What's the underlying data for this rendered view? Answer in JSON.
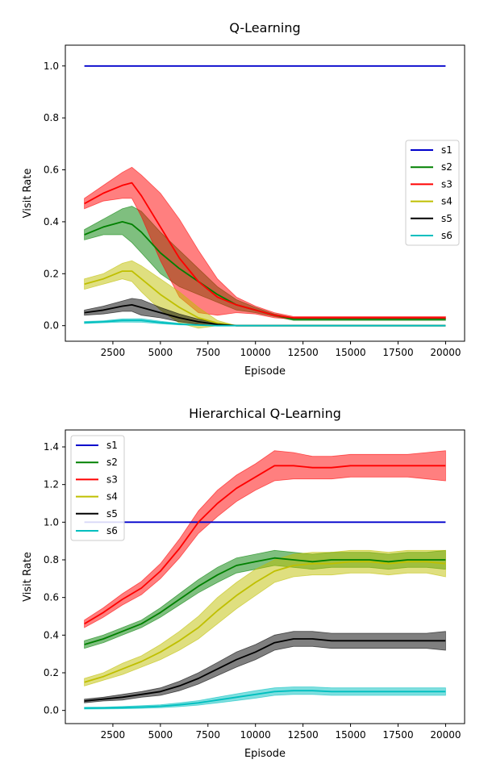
{
  "chart_data": [
    {
      "type": "line",
      "title": "Q-Learning",
      "xlabel": "Episode",
      "ylabel": "Visit Rate",
      "xlim": [
        0,
        21000
      ],
      "ylim": [
        -0.06,
        1.08
      ],
      "xticks": [
        2500,
        5000,
        7500,
        10000,
        12500,
        15000,
        17500,
        20000
      ],
      "yticks": [
        0.0,
        0.2,
        0.4,
        0.6,
        0.8,
        1.0
      ],
      "legend": "center-right",
      "series": [
        {
          "name": "s1",
          "color": "#0000cc",
          "x": [
            1000,
            20000
          ],
          "y": [
            1.0,
            1.0
          ],
          "band": 0
        },
        {
          "name": "s2",
          "color": "#008000",
          "x": [
            1000,
            2000,
            3000,
            3500,
            4000,
            5000,
            6000,
            7000,
            8000,
            9000,
            10000,
            11000,
            12000,
            14000,
            20000
          ],
          "y": [
            0.35,
            0.38,
            0.4,
            0.39,
            0.36,
            0.28,
            0.22,
            0.17,
            0.12,
            0.08,
            0.06,
            0.04,
            0.025,
            0.025,
            0.025
          ],
          "band": [
            0.02,
            0.03,
            0.05,
            0.07,
            0.08,
            0.08,
            0.07,
            0.05,
            0.03,
            0.02,
            0.01,
            0.005,
            0.005,
            0.005,
            0.005
          ]
        },
        {
          "name": "s3",
          "color": "#ff0000",
          "x": [
            1000,
            2000,
            3000,
            3500,
            4000,
            5000,
            6000,
            7000,
            8000,
            9000,
            10000,
            11000,
            12000,
            14000,
            20000
          ],
          "y": [
            0.47,
            0.51,
            0.54,
            0.55,
            0.5,
            0.38,
            0.26,
            0.17,
            0.11,
            0.08,
            0.06,
            0.04,
            0.03,
            0.03,
            0.03
          ],
          "band": [
            0.02,
            0.03,
            0.05,
            0.06,
            0.08,
            0.13,
            0.15,
            0.12,
            0.07,
            0.03,
            0.015,
            0.01,
            0.005,
            0.005,
            0.005
          ]
        },
        {
          "name": "s4",
          "color": "#bfbf00",
          "x": [
            1000,
            2000,
            3000,
            3500,
            4000,
            5000,
            6000,
            7000,
            8000,
            9000,
            20000
          ],
          "y": [
            0.16,
            0.18,
            0.21,
            0.21,
            0.18,
            0.12,
            0.07,
            0.03,
            0.01,
            0.0,
            0.0
          ],
          "band": [
            0.02,
            0.02,
            0.03,
            0.04,
            0.05,
            0.06,
            0.06,
            0.04,
            0.01,
            0.0,
            0.0
          ]
        },
        {
          "name": "s5",
          "color": "#000000",
          "x": [
            1000,
            2000,
            3000,
            3500,
            4000,
            5000,
            6000,
            7000,
            8000,
            9000,
            20000
          ],
          "y": [
            0.05,
            0.06,
            0.075,
            0.08,
            0.07,
            0.05,
            0.03,
            0.015,
            0.005,
            0.0,
            0.0
          ],
          "band": [
            0.01,
            0.015,
            0.02,
            0.025,
            0.03,
            0.02,
            0.015,
            0.01,
            0.005,
            0.0,
            0.0
          ]
        },
        {
          "name": "s6",
          "color": "#00bfbf",
          "x": [
            1000,
            2000,
            3000,
            4000,
            5000,
            6000,
            7000,
            8000,
            20000
          ],
          "y": [
            0.012,
            0.015,
            0.02,
            0.02,
            0.012,
            0.006,
            0.002,
            0.0,
            0.0
          ],
          "band": [
            0.004,
            0.004,
            0.006,
            0.007,
            0.005,
            0.003,
            0.001,
            0.0,
            0.0
          ]
        }
      ]
    },
    {
      "type": "line",
      "title": "Hierarchical Q-Learning",
      "xlabel": "Episode",
      "ylabel": "Visit Rate",
      "xlim": [
        0,
        21000
      ],
      "ylim": [
        -0.07,
        1.49
      ],
      "xticks": [
        2500,
        5000,
        7500,
        10000,
        12500,
        15000,
        17500,
        20000
      ],
      "yticks": [
        0.0,
        0.2,
        0.4,
        0.6,
        0.8,
        1.0,
        1.2,
        1.4
      ],
      "legend": "top-left",
      "series": [
        {
          "name": "s1",
          "color": "#0000cc",
          "x": [
            1000,
            20000
          ],
          "y": [
            1.0,
            1.0
          ],
          "band": 0
        },
        {
          "name": "s2",
          "color": "#008000",
          "x": [
            1000,
            2000,
            3000,
            4000,
            5000,
            6000,
            7000,
            8000,
            9000,
            10000,
            11000,
            12000,
            13000,
            14000,
            15000,
            16000,
            17000,
            18000,
            19000,
            20000
          ],
          "y": [
            0.35,
            0.38,
            0.42,
            0.46,
            0.52,
            0.59,
            0.66,
            0.72,
            0.77,
            0.79,
            0.81,
            0.8,
            0.79,
            0.8,
            0.8,
            0.8,
            0.79,
            0.8,
            0.8,
            0.8
          ],
          "band": [
            0.02,
            0.02,
            0.02,
            0.02,
            0.025,
            0.03,
            0.035,
            0.04,
            0.04,
            0.04,
            0.04,
            0.04,
            0.04,
            0.04,
            0.04,
            0.04,
            0.04,
            0.04,
            0.04,
            0.05
          ]
        },
        {
          "name": "s3",
          "color": "#ff0000",
          "x": [
            1000,
            2000,
            3000,
            4000,
            5000,
            6000,
            7000,
            8000,
            9000,
            10000,
            11000,
            12000,
            13000,
            14000,
            15000,
            16000,
            17000,
            18000,
            19000,
            20000
          ],
          "y": [
            0.46,
            0.52,
            0.59,
            0.65,
            0.74,
            0.86,
            1.0,
            1.1,
            1.18,
            1.24,
            1.3,
            1.3,
            1.29,
            1.29,
            1.3,
            1.3,
            1.3,
            1.3,
            1.3,
            1.3
          ],
          "band": [
            0.02,
            0.025,
            0.03,
            0.035,
            0.04,
            0.05,
            0.06,
            0.07,
            0.07,
            0.07,
            0.08,
            0.07,
            0.06,
            0.06,
            0.06,
            0.06,
            0.06,
            0.06,
            0.07,
            0.08
          ]
        },
        {
          "name": "s4",
          "color": "#bfbf00",
          "x": [
            1000,
            2000,
            3000,
            4000,
            5000,
            6000,
            7000,
            8000,
            9000,
            10000,
            11000,
            12000,
            13000,
            14000,
            15000,
            16000,
            17000,
            18000,
            19000,
            20000
          ],
          "y": [
            0.15,
            0.18,
            0.22,
            0.26,
            0.31,
            0.37,
            0.44,
            0.53,
            0.61,
            0.68,
            0.74,
            0.77,
            0.78,
            0.78,
            0.79,
            0.79,
            0.78,
            0.79,
            0.79,
            0.78
          ],
          "band": [
            0.02,
            0.02,
            0.03,
            0.03,
            0.04,
            0.05,
            0.06,
            0.07,
            0.07,
            0.07,
            0.06,
            0.06,
            0.06,
            0.06,
            0.06,
            0.06,
            0.06,
            0.06,
            0.06,
            0.07
          ]
        },
        {
          "name": "s5",
          "color": "#000000",
          "x": [
            1000,
            2000,
            3000,
            4000,
            5000,
            6000,
            7000,
            8000,
            9000,
            10000,
            11000,
            12000,
            13000,
            14000,
            15000,
            16000,
            17000,
            18000,
            19000,
            20000
          ],
          "y": [
            0.05,
            0.06,
            0.07,
            0.085,
            0.1,
            0.13,
            0.17,
            0.22,
            0.27,
            0.31,
            0.36,
            0.38,
            0.38,
            0.37,
            0.37,
            0.37,
            0.37,
            0.37,
            0.37,
            0.37
          ],
          "band": [
            0.01,
            0.01,
            0.015,
            0.015,
            0.02,
            0.025,
            0.03,
            0.035,
            0.04,
            0.04,
            0.04,
            0.04,
            0.04,
            0.04,
            0.04,
            0.04,
            0.04,
            0.04,
            0.04,
            0.05
          ]
        },
        {
          "name": "s6",
          "color": "#00bfbf",
          "x": [
            1000,
            2000,
            3000,
            4000,
            5000,
            6000,
            7000,
            8000,
            9000,
            10000,
            11000,
            12000,
            13000,
            14000,
            15000,
            16000,
            17000,
            18000,
            19000,
            20000
          ],
          "y": [
            0.012,
            0.013,
            0.015,
            0.018,
            0.022,
            0.03,
            0.04,
            0.055,
            0.07,
            0.085,
            0.1,
            0.105,
            0.105,
            0.1,
            0.1,
            0.1,
            0.1,
            0.1,
            0.1,
            0.1
          ],
          "band": [
            0.005,
            0.005,
            0.006,
            0.007,
            0.008,
            0.01,
            0.012,
            0.015,
            0.018,
            0.02,
            0.02,
            0.02,
            0.02,
            0.02,
            0.02,
            0.02,
            0.02,
            0.02,
            0.02,
            0.02
          ]
        }
      ]
    }
  ]
}
